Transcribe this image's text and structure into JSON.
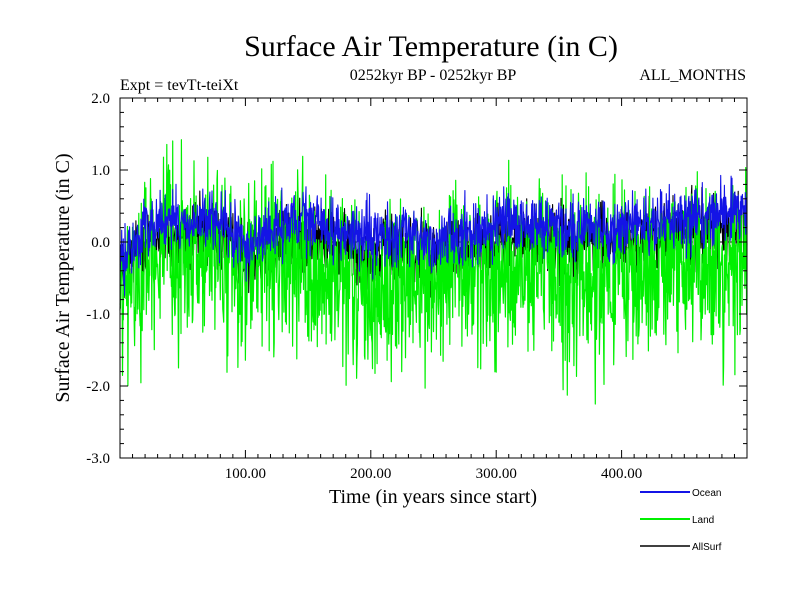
{
  "chart_data": {
    "type": "line",
    "title": "Surface Air Temperature (in C)",
    "subtitle_left": "Expt = tevTt-teiXt",
    "subtitle_center": "0252kyr BP - 0252kyr BP",
    "subtitle_right": "ALL_MONTHS",
    "xlabel": "Time (in years since start)",
    "ylabel": "Surface Air Temperature (in C)",
    "xlim": [
      0,
      500
    ],
    "ylim": [
      -3.0,
      2.0
    ],
    "x_ticks": [
      100,
      200,
      300,
      400
    ],
    "x_tick_labels": [
      "100.00",
      "200.00",
      "300.00",
      "400.00"
    ],
    "y_ticks": [
      -3.0,
      -2.0,
      -1.0,
      0.0,
      1.0,
      2.0
    ],
    "y_tick_labels": [
      "-3.0",
      "-2.0",
      "-1.0",
      "0.0",
      "1.0",
      "2.0"
    ],
    "reference_line": 0.0,
    "legend_position": "bottom-right",
    "series": [
      {
        "name": "Ocean",
        "color": "#1414e6",
        "draw_order": 2,
        "x_step": 25,
        "mean_values": [
          -0.3,
          0.3,
          0.25,
          0.3,
          -0.05,
          0.2,
          0.3,
          0.15,
          0.05,
          0.1,
          0.0,
          0.15,
          0.2,
          0.25,
          0.25,
          0.2,
          0.2,
          0.25,
          0.35,
          0.4,
          0.45
        ],
        "noise": 0.3
      },
      {
        "name": "Land",
        "color": "#00f000",
        "draw_order": 1,
        "x_step": 25,
        "mean_values": [
          -0.9,
          -0.1,
          -0.15,
          -0.2,
          -0.45,
          -0.3,
          -0.45,
          -0.65,
          -0.7,
          -0.6,
          -0.6,
          -0.45,
          -0.45,
          -0.5,
          -0.45,
          -0.5,
          -0.5,
          -0.4,
          -0.3,
          -0.35,
          -0.3
        ],
        "noise": 0.85
      },
      {
        "name": "AllSurf",
        "color": "#000000",
        "draw_order": 0,
        "x_step": 25,
        "mean_values": [
          -0.5,
          0.1,
          0.05,
          0.1,
          -0.2,
          0.0,
          0.05,
          -0.1,
          -0.15,
          -0.1,
          -0.15,
          -0.05,
          0.0,
          0.05,
          0.05,
          0.0,
          0.0,
          0.05,
          0.15,
          0.2,
          0.25
        ],
        "noise": 0.35
      }
    ]
  }
}
